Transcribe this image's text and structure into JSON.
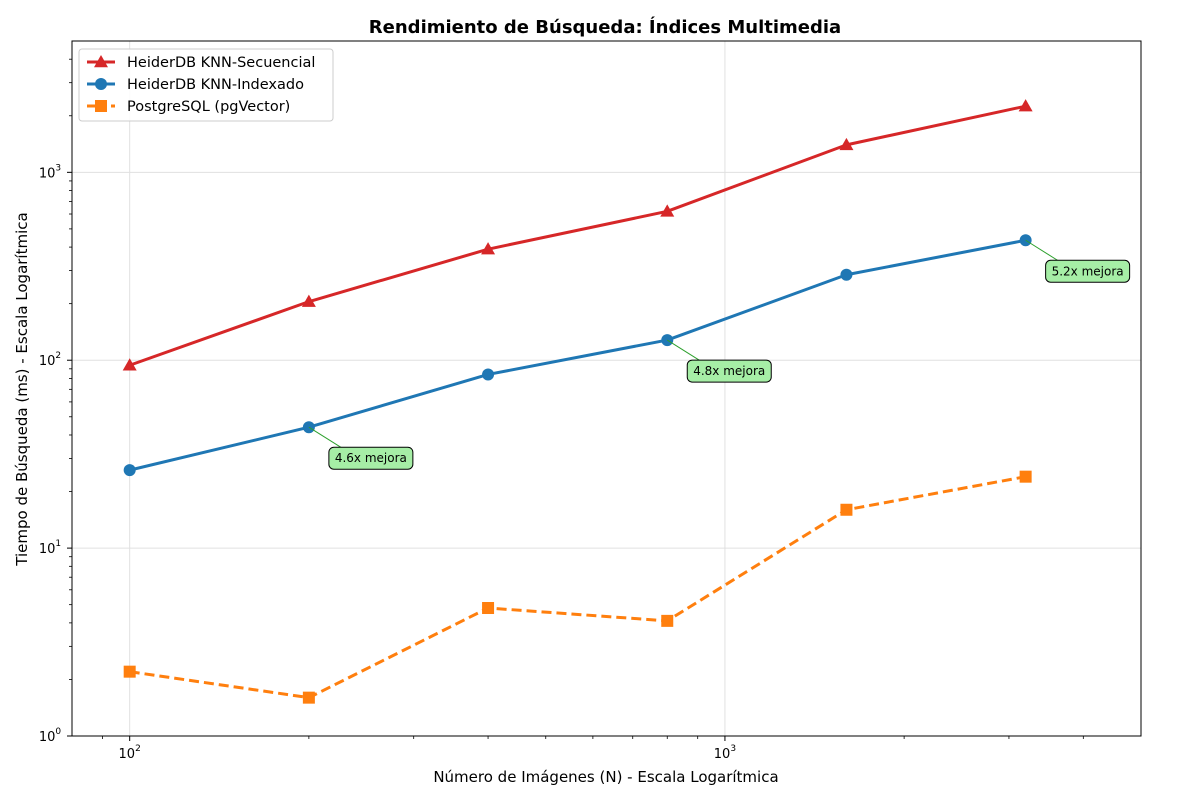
{
  "chart_data": {
    "type": "line",
    "title": "Rendimiento de Búsqueda: Índices Multimedia",
    "xlabel": "Número de Imágenes (N) - Escala Logarítmica",
    "ylabel": "Tiempo de Búsqueda (ms) - Escala Logarítmica",
    "xscale": "log",
    "yscale": "log",
    "xlim": [
      80,
      5000
    ],
    "ylim": [
      1,
      5000
    ],
    "grid": true,
    "legend_position": "top-left",
    "x_ticks": [
      {
        "value": 100,
        "label": "10",
        "exp": "2"
      },
      {
        "value": 1000,
        "label": "10",
        "exp": "3"
      }
    ],
    "y_ticks": [
      {
        "value": 1,
        "label": "10",
        "exp": "0"
      },
      {
        "value": 10,
        "label": "10",
        "exp": "1"
      },
      {
        "value": 100,
        "label": "10",
        "exp": "2"
      },
      {
        "value": 1000,
        "label": "10",
        "exp": "3"
      }
    ],
    "x": [
      100,
      200,
      400,
      800,
      1600,
      3200
    ],
    "series": [
      {
        "name": "HeiderDB KNN-Secuencial",
        "color": "#d62728",
        "marker": "triangle",
        "dashed": false,
        "values": [
          94,
          205,
          390,
          620,
          1400,
          2250
        ]
      },
      {
        "name": "HeiderDB KNN-Indexado",
        "color": "#1f77b4",
        "marker": "circle",
        "dashed": false,
        "values": [
          26,
          44,
          84,
          128,
          285,
          435
        ]
      },
      {
        "name": "PostgreSQL (pgVector)",
        "color": "#ff7f0e",
        "marker": "square",
        "dashed": true,
        "values": [
          2.2,
          1.6,
          4.8,
          4.1,
          16,
          24
        ]
      }
    ],
    "annotations": [
      {
        "text": "4.6x mejora",
        "x": 200,
        "y": 44
      },
      {
        "text": "4.8x mejora",
        "x": 800,
        "y": 128
      },
      {
        "text": "5.2x mejora",
        "x": 3200,
        "y": 435
      }
    ]
  }
}
